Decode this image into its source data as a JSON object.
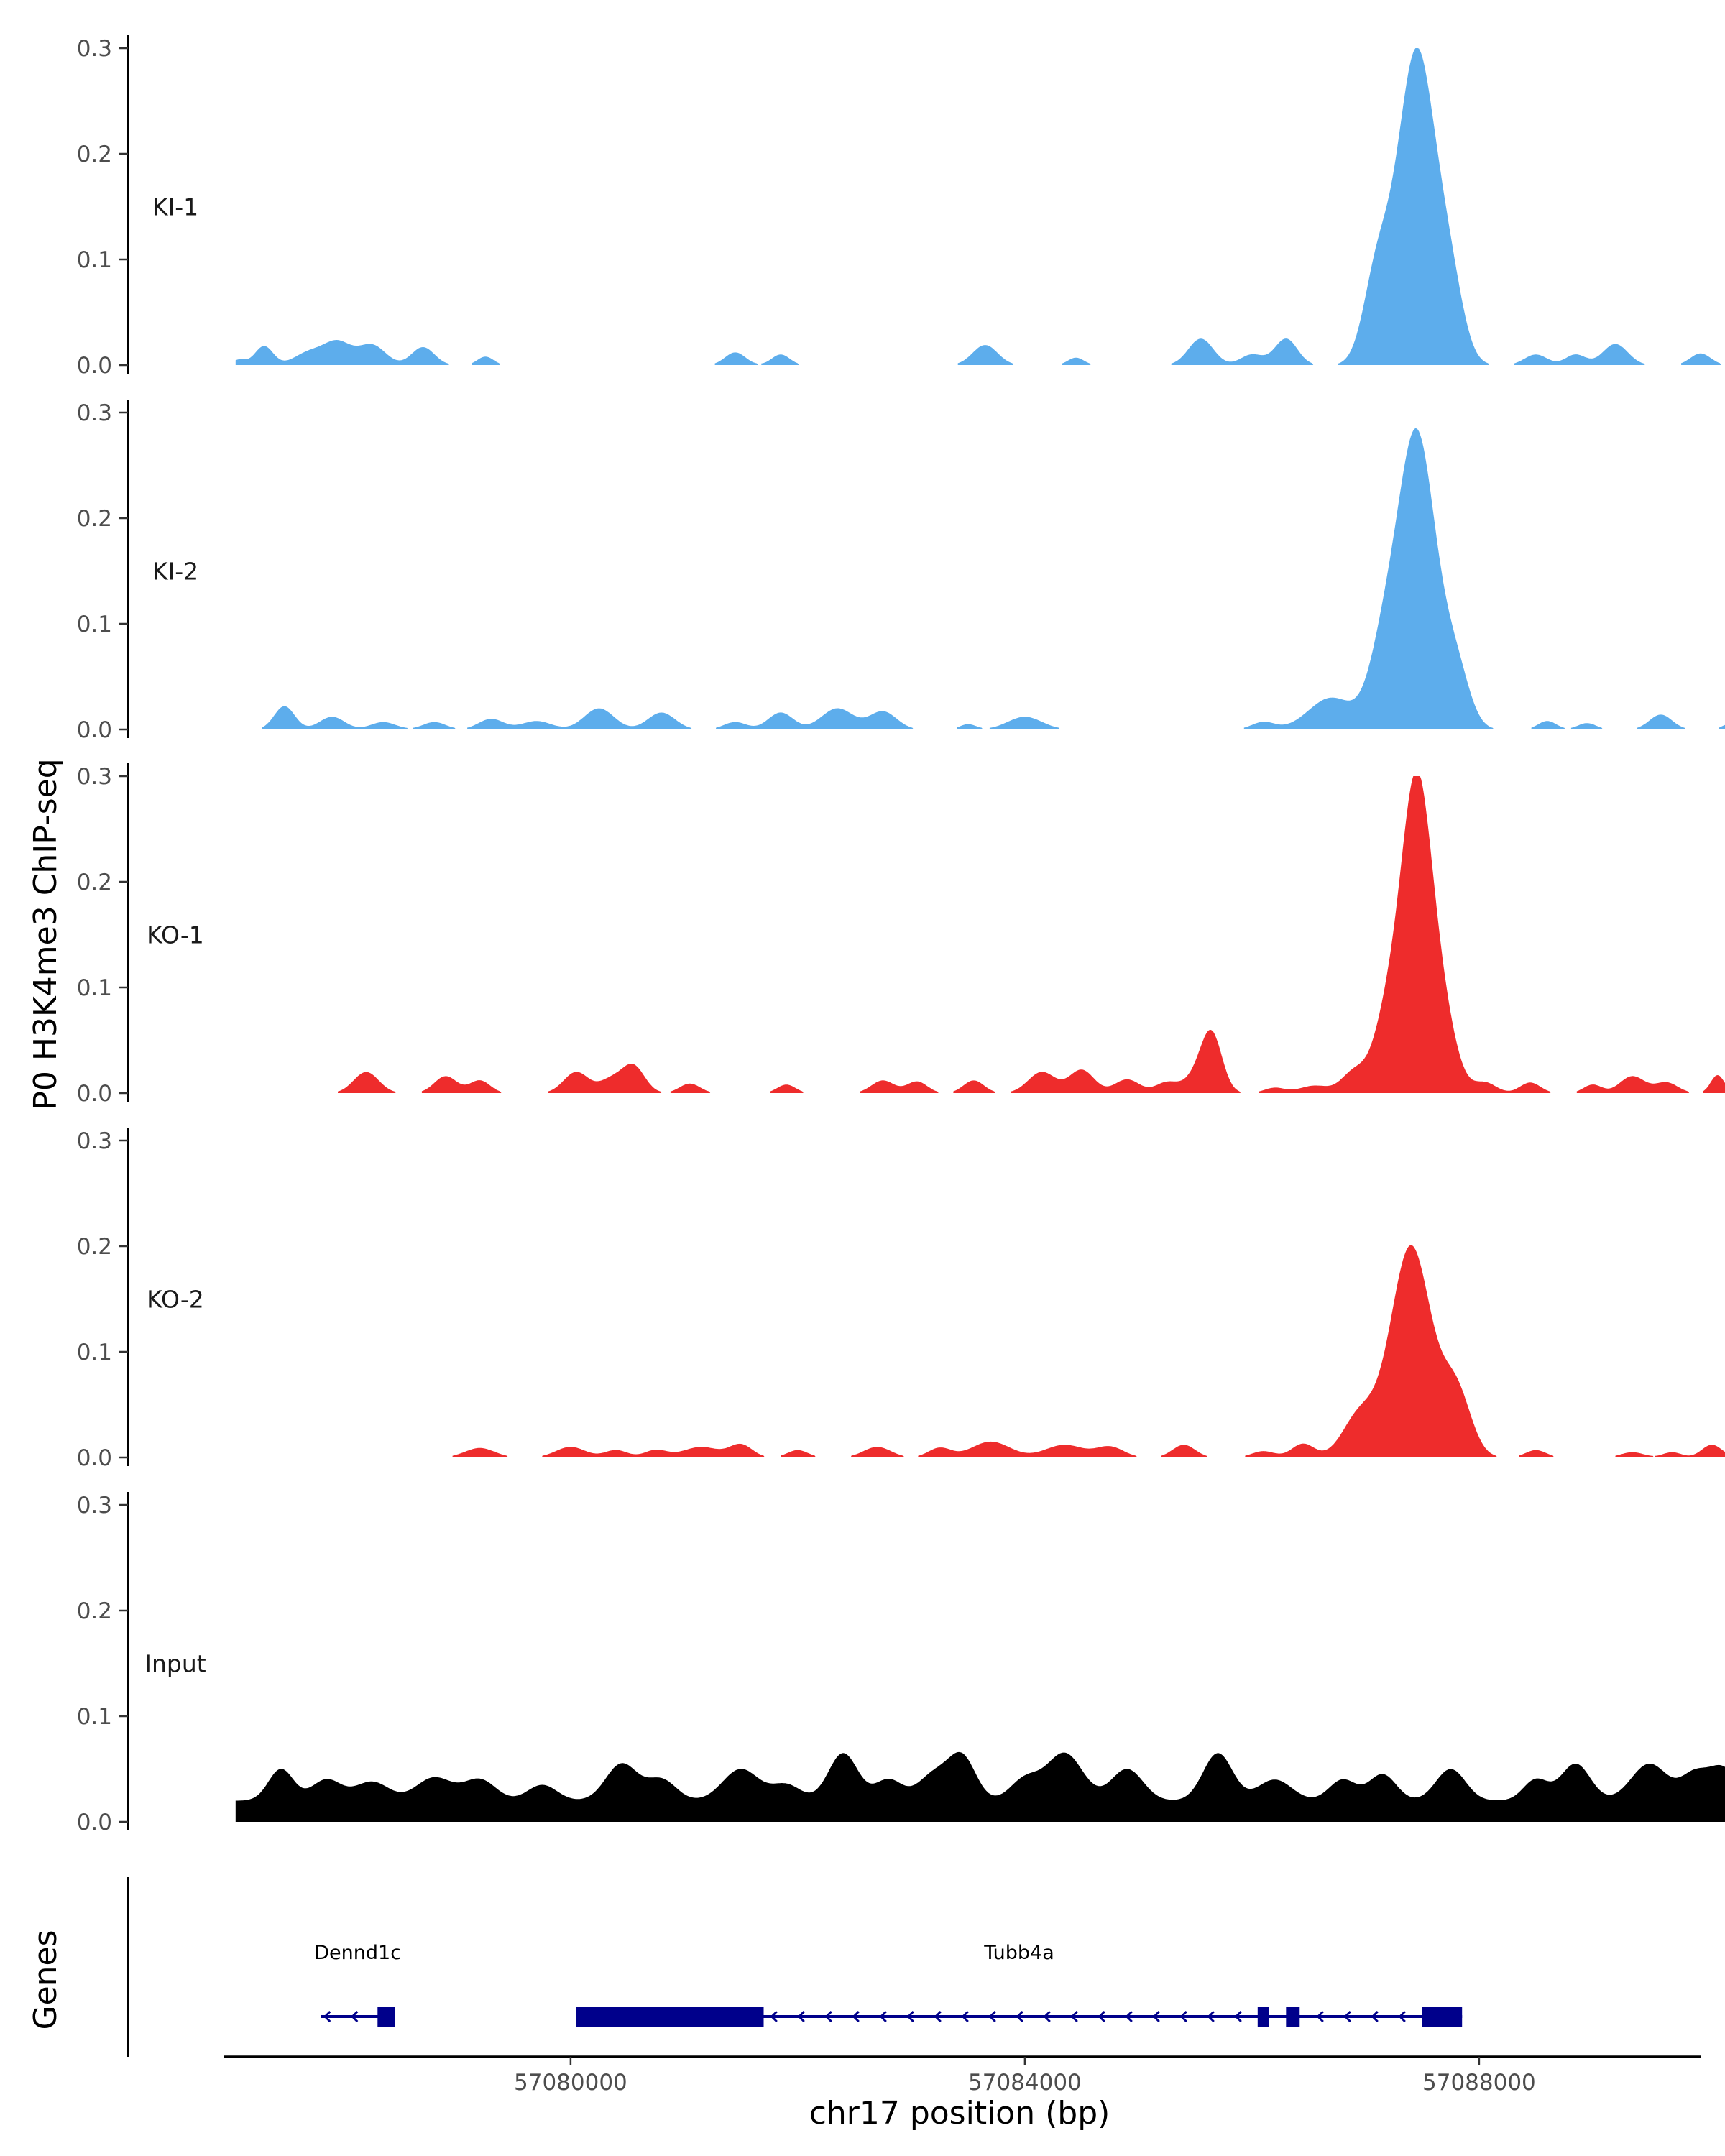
{
  "chart_data": {
    "type": "area",
    "title": "",
    "ylabel": "P0 H3K4me3 ChIP-seq",
    "xlabel": "chr17 position (bp)",
    "xlim": [
      57076950,
      57089950
    ],
    "ylim": [
      0,
      0.3
    ],
    "x_ticks": [
      57080000,
      57084000,
      57088000
    ],
    "y_ticks": [
      0.0,
      0.1,
      0.2,
      0.3
    ],
    "y_tick_labels": [
      "0.0",
      "0.1",
      "0.2",
      "0.3"
    ],
    "colors": {
      "KI": "#5DADEC",
      "KO": "#EE2C2C",
      "Input": "#000000",
      "gene": "#00008B"
    },
    "tracks": [
      {
        "name": "KI-1",
        "color": "#5DADEC",
        "peaks": [
          [
            57077080,
            0.005,
            60
          ],
          [
            57077300,
            0.018,
            80
          ],
          [
            57077700,
            0.012,
            130
          ],
          [
            57077950,
            0.021,
            120
          ],
          [
            57078250,
            0.019,
            120
          ],
          [
            57078700,
            0.017,
            100
          ],
          [
            57079250,
            0.008,
            70
          ],
          [
            57081450,
            0.012,
            90
          ],
          [
            57081850,
            0.01,
            80
          ],
          [
            57083650,
            0.019,
            110
          ],
          [
            57084450,
            0.007,
            70
          ],
          [
            57085550,
            0.025,
            110
          ],
          [
            57086000,
            0.01,
            100
          ],
          [
            57086300,
            0.025,
            100
          ],
          [
            57087450,
            0.297,
            170
          ],
          [
            57087100,
            0.08,
            120
          ],
          [
            57087750,
            0.06,
            120
          ],
          [
            57088500,
            0.01,
            100
          ],
          [
            57088850,
            0.01,
            90
          ],
          [
            57089200,
            0.02,
            110
          ],
          [
            57089950,
            0.011,
            90
          ]
        ]
      },
      {
        "name": "KI-2",
        "color": "#5DADEC",
        "peaks": [
          [
            57077480,
            0.022,
            90
          ],
          [
            57077900,
            0.012,
            110
          ],
          [
            57078350,
            0.007,
            110
          ],
          [
            57078800,
            0.007,
            100
          ],
          [
            57079300,
            0.01,
            110
          ],
          [
            57079700,
            0.008,
            130
          ],
          [
            57080250,
            0.02,
            130
          ],
          [
            57080800,
            0.016,
            120
          ],
          [
            57081450,
            0.007,
            100
          ],
          [
            57081850,
            0.016,
            110
          ],
          [
            57082350,
            0.02,
            140
          ],
          [
            57082750,
            0.017,
            120
          ],
          [
            57083500,
            0.005,
            70
          ],
          [
            57084000,
            0.012,
            150
          ],
          [
            57086100,
            0.007,
            100
          ],
          [
            57086700,
            0.03,
            200
          ],
          [
            57087450,
            0.28,
            170
          ],
          [
            57087150,
            0.06,
            130
          ],
          [
            57087800,
            0.05,
            120
          ],
          [
            57088600,
            0.008,
            80
          ],
          [
            57088950,
            0.006,
            80
          ],
          [
            57089600,
            0.014,
            100
          ],
          [
            57090200,
            0.005,
            60
          ]
        ]
      },
      {
        "name": "KO-1",
        "color": "#EE2C2C",
        "peaks": [
          [
            57078200,
            0.02,
            110
          ],
          [
            57078900,
            0.016,
            100
          ],
          [
            57079200,
            0.012,
            90
          ],
          [
            57080050,
            0.02,
            110
          ],
          [
            57080550,
            0.026,
            100
          ],
          [
            57080350,
            0.012,
            100
          ],
          [
            57081050,
            0.009,
            90
          ],
          [
            57081900,
            0.008,
            80
          ],
          [
            57082750,
            0.012,
            100
          ],
          [
            57083050,
            0.011,
            90
          ],
          [
            57083550,
            0.012,
            90
          ],
          [
            57084150,
            0.02,
            120
          ],
          [
            57084500,
            0.022,
            110
          ],
          [
            57084900,
            0.013,
            110
          ],
          [
            57085250,
            0.01,
            100
          ],
          [
            57085650,
            0.045,
            90
          ],
          [
            57085550,
            0.02,
            120
          ],
          [
            57086200,
            0.005,
            90
          ],
          [
            57086550,
            0.007,
            130
          ],
          [
            57086900,
            0.02,
            110
          ],
          [
            57087450,
            0.296,
            140
          ],
          [
            57087180,
            0.06,
            120
          ],
          [
            57087700,
            0.05,
            120
          ],
          [
            57088050,
            0.01,
            100
          ],
          [
            57088450,
            0.01,
            90
          ],
          [
            57089000,
            0.008,
            80
          ],
          [
            57089350,
            0.016,
            110
          ],
          [
            57089650,
            0.01,
            100
          ],
          [
            57090100,
            0.017,
            60
          ]
        ]
      },
      {
        "name": "KO-2",
        "color": "#EE2C2C",
        "peaks": [
          [
            57079200,
            0.009,
            130
          ],
          [
            57080000,
            0.01,
            130
          ],
          [
            57080400,
            0.007,
            100
          ],
          [
            57080750,
            0.007,
            100
          ],
          [
            57081150,
            0.01,
            160
          ],
          [
            57081500,
            0.012,
            100
          ],
          [
            57082000,
            0.007,
            90
          ],
          [
            57082700,
            0.01,
            120
          ],
          [
            57083250,
            0.009,
            100
          ],
          [
            57083700,
            0.015,
            170
          ],
          [
            57084350,
            0.012,
            170
          ],
          [
            57084750,
            0.01,
            120
          ],
          [
            57085400,
            0.012,
            100
          ],
          [
            57086100,
            0.006,
            100
          ],
          [
            57086450,
            0.013,
            100
          ],
          [
            57087400,
            0.2,
            180
          ],
          [
            57086950,
            0.04,
            150
          ],
          [
            57087800,
            0.06,
            130
          ],
          [
            57088500,
            0.007,
            90
          ],
          [
            57089350,
            0.005,
            100
          ],
          [
            57089700,
            0.005,
            80
          ],
          [
            57090050,
            0.012,
            90
          ]
        ]
      },
      {
        "name": "Input",
        "color": "#000000",
        "base": 0.02,
        "peaks": [
          [
            57077450,
            0.03,
            110
          ],
          [
            57077850,
            0.02,
            130
          ],
          [
            57078250,
            0.018,
            150
          ],
          [
            57078800,
            0.022,
            160
          ],
          [
            57079200,
            0.02,
            140
          ],
          [
            57079750,
            0.015,
            130
          ],
          [
            57080450,
            0.035,
            140
          ],
          [
            57080800,
            0.02,
            130
          ],
          [
            57081500,
            0.03,
            160
          ],
          [
            57081900,
            0.015,
            130
          ],
          [
            57082400,
            0.045,
            130
          ],
          [
            57082800,
            0.02,
            120
          ],
          [
            57083200,
            0.025,
            140
          ],
          [
            57083450,
            0.04,
            120
          ],
          [
            57084000,
            0.02,
            130
          ],
          [
            57084350,
            0.045,
            160
          ],
          [
            57084900,
            0.03,
            140
          ],
          [
            57085700,
            0.045,
            130
          ],
          [
            57086200,
            0.02,
            150
          ],
          [
            57086800,
            0.02,
            120
          ],
          [
            57087150,
            0.025,
            120
          ],
          [
            57087750,
            0.03,
            130
          ],
          [
            57088500,
            0.02,
            110
          ],
          [
            57088850,
            0.035,
            130
          ],
          [
            57089500,
            0.035,
            160
          ],
          [
            57089900,
            0.025,
            120
          ],
          [
            57090150,
            0.03,
            120
          ]
        ]
      }
    ],
    "genes": [
      {
        "name": "Dennd1c",
        "strand": "-",
        "start": 57077800,
        "end": 57078450,
        "exons": [
          [
            57078300,
            57078450
          ]
        ]
      },
      {
        "name": "Tubb4a",
        "strand": "-",
        "start": 57080050,
        "end": 57087850,
        "exons": [
          [
            57080050,
            57081700
          ],
          [
            57086050,
            57086150
          ],
          [
            57086300,
            57086420
          ],
          [
            57087500,
            57087850
          ]
        ]
      }
    ],
    "genes_track_label": "Genes"
  }
}
